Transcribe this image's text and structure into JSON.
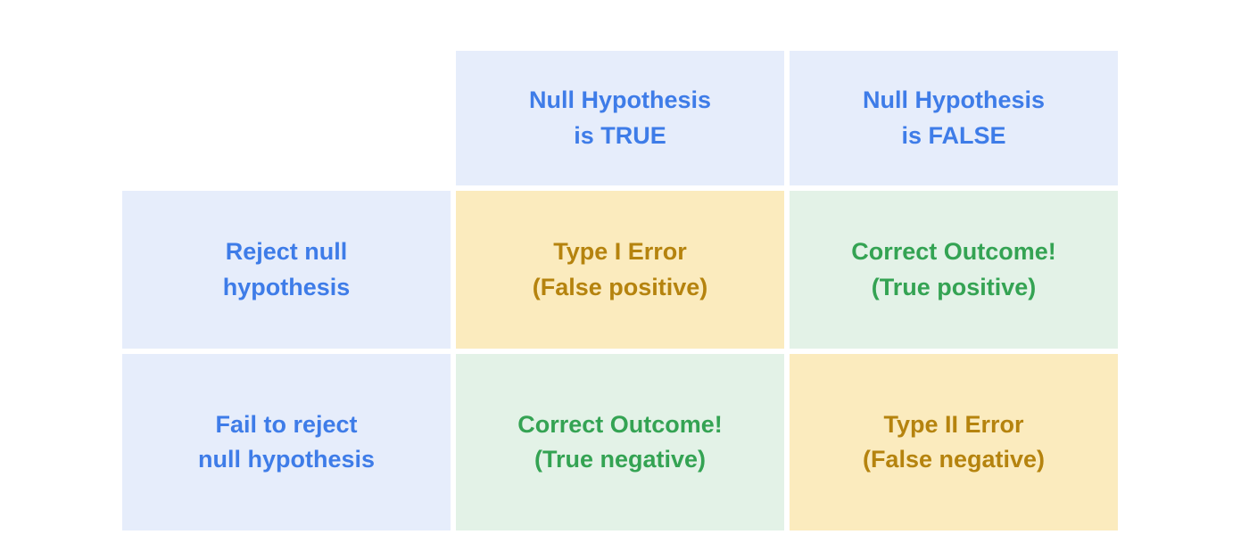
{
  "colors": {
    "page_bg": "#FFFFFF",
    "header_bg": "#E6EDFB",
    "header_text": "#3E7CE8",
    "warn_bg": "#FBEBBE",
    "warn_text": "#B5830E",
    "ok_bg": "#E3F2E7",
    "ok_text": "#34A353"
  },
  "matrix": {
    "column_headers": [
      {
        "line1": "Null Hypothesis",
        "line2": "is TRUE"
      },
      {
        "line1": "Null Hypothesis",
        "line2": "is FALSE"
      }
    ],
    "row_headers": [
      {
        "line1": "Reject null",
        "line2": "hypothesis"
      },
      {
        "line1": "Fail to reject",
        "line2": "null hypothesis"
      }
    ],
    "cells": [
      [
        {
          "line1": "Type I Error",
          "line2": "(False positive)",
          "kind": "error"
        },
        {
          "line1": "Correct Outcome!",
          "line2": "(True positive)",
          "kind": "correct"
        }
      ],
      [
        {
          "line1": "Correct Outcome!",
          "line2": "(True negative)",
          "kind": "correct"
        },
        {
          "line1": "Type II Error",
          "line2": "(False negative)",
          "kind": "error"
        }
      ]
    ]
  }
}
